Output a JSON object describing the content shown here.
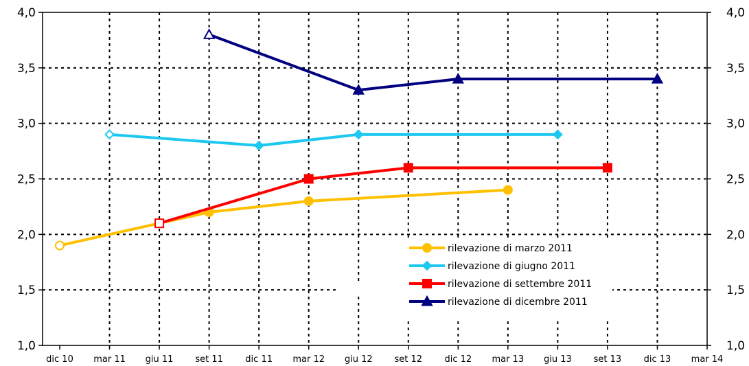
{
  "chart_data": {
    "type": "line",
    "title": "",
    "xlabel": "",
    "ylabel": "",
    "x_ticks": [
      "dic 10",
      "mar 11",
      "giu 11",
      "set 11",
      "dic 11",
      "mar 12",
      "giu 12",
      "set 12",
      "dic 12",
      "mar 13",
      "giu 13",
      "set 13",
      "dic 13",
      "mar 14"
    ],
    "y_ticks": [
      "1,0",
      "1,5",
      "2,0",
      "2,5",
      "3,0",
      "3,5",
      "4,0"
    ],
    "ylim": [
      1.0,
      4.0
    ],
    "grid": true,
    "legend_position": "bottom-right",
    "series": [
      {
        "name": "rilevazione di marzo 2011",
        "color": "#FFC000",
        "marker": "circle",
        "points": [
          {
            "x": "dic 10",
            "y": 1.9,
            "hollow": true
          },
          {
            "x": "set 11",
            "y": 2.2,
            "hollow": false
          },
          {
            "x": "mar 12",
            "y": 2.3,
            "hollow": false
          },
          {
            "x": "mar 13",
            "y": 2.4,
            "hollow": false
          }
        ]
      },
      {
        "name": "rilevazione di giugno 2011",
        "color": "#1CC8F0",
        "marker": "diamond",
        "points": [
          {
            "x": "mar 11",
            "y": 2.9,
            "hollow": true
          },
          {
            "x": "dic 11",
            "y": 2.8,
            "hollow": false
          },
          {
            "x": "giu 12",
            "y": 2.9,
            "hollow": false
          },
          {
            "x": "giu 13",
            "y": 2.9,
            "hollow": false
          }
        ]
      },
      {
        "name": "rilevazione di settembre 2011",
        "color": "#FF0000",
        "marker": "square",
        "points": [
          {
            "x": "giu 11",
            "y": 2.1,
            "hollow": true
          },
          {
            "x": "mar 12",
            "y": 2.5,
            "hollow": false
          },
          {
            "x": "set 12",
            "y": 2.6,
            "hollow": false
          },
          {
            "x": "set 13",
            "y": 2.6,
            "hollow": false
          }
        ]
      },
      {
        "name": "rilevazione di dicembre 2011",
        "color": "#000080",
        "marker": "triangle",
        "points": [
          {
            "x": "set 11",
            "y": 3.8,
            "hollow": true
          },
          {
            "x": "giu 12",
            "y": 3.3,
            "hollow": false
          },
          {
            "x": "dic 12",
            "y": 3.4,
            "hollow": false
          },
          {
            "x": "dic 13",
            "y": 3.4,
            "hollow": false
          }
        ]
      }
    ]
  }
}
